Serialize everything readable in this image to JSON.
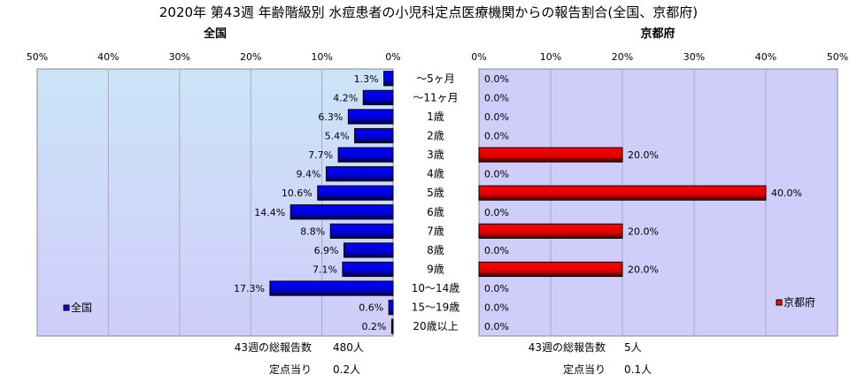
{
  "chart_data": [
    {
      "type": "bar",
      "orientation": "horizontal",
      "title": "2020年 第43週 年齢階級別 水痘患者の小児科定点医療機関からの報告割合(全国、京都府)",
      "subtitle": "全国",
      "categories": [
        "～5ヶ月",
        "～11ヶ月",
        "1歳",
        "2歳",
        "3歳",
        "4歳",
        "5歳",
        "6歳",
        "7歳",
        "8歳",
        "9歳",
        "10～14歳",
        "15～19歳",
        "20歳以上"
      ],
      "series": [
        {
          "name": "全国",
          "color": "#0000ff",
          "values": [
            1.3,
            4.2,
            6.3,
            5.4,
            7.7,
            9.4,
            10.6,
            14.4,
            8.8,
            6.9,
            7.1,
            17.3,
            0.6,
            0.2
          ]
        }
      ],
      "value_labels": [
        "1.3%",
        "4.2%",
        "6.3%",
        "5.4%",
        "7.7%",
        "9.4%",
        "10.6%",
        "14.4%",
        "8.8%",
        "6.9%",
        "7.1%",
        "17.3%",
        "0.6%",
        "0.2%"
      ],
      "xlim": [
        0,
        50
      ],
      "x_reversed": true,
      "xticks": [
        "50%",
        "40%",
        "30%",
        "20%",
        "10%",
        "0%"
      ],
      "legend": "left",
      "grid": true,
      "footer": {
        "total_label": "43週の総報告数",
        "total_value": "480人",
        "per_label": "定点当り",
        "per_value": "0.2人"
      }
    },
    {
      "type": "bar",
      "orientation": "horizontal",
      "subtitle": "京都府",
      "series": [
        {
          "name": "京都府",
          "color": "#ff0000",
          "values": [
            0,
            0,
            0,
            0,
            20,
            0,
            40,
            0,
            20,
            0,
            20,
            0,
            0,
            0
          ]
        }
      ],
      "value_labels": [
        "0.0%",
        "0.0%",
        "0.0%",
        "0.0%",
        "20.0%",
        "0.0%",
        "40.0%",
        "0.0%",
        "20.0%",
        "0.0%",
        "20.0%",
        "0.0%",
        "0.0%",
        "0.0%"
      ],
      "xlim": [
        0,
        50
      ],
      "xticks": [
        "0%",
        "10%",
        "20%",
        "30%",
        "40%",
        "50%"
      ],
      "legend": "right",
      "grid": true,
      "footer": {
        "total_label": "43週の総報告数",
        "total_value": "5人",
        "per_label": "定点当り",
        "per_value": "0.1人"
      }
    }
  ]
}
